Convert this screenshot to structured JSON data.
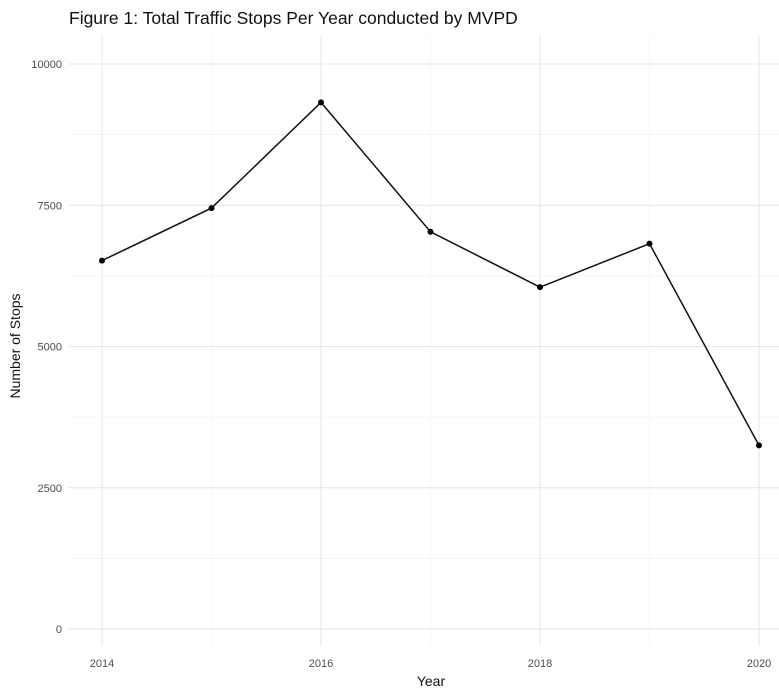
{
  "chart_data": {
    "type": "line",
    "title": "Figure 1: Total Traffic Stops Per Year conducted by MVPD",
    "xlabel": "Year",
    "ylabel": "Number of Stops",
    "x": [
      2014,
      2015,
      2016,
      2017,
      2018,
      2019,
      2020
    ],
    "values": [
      6520,
      7450,
      9320,
      7030,
      6050,
      6820,
      3250
    ],
    "xlim": [
      2014,
      2020
    ],
    "ylim": [
      0,
      10000
    ],
    "x_ticks": [
      "2014",
      "2016",
      "2018",
      "2020"
    ],
    "y_ticks": [
      "0",
      "2500",
      "5000",
      "7500",
      "10000"
    ],
    "grid": true,
    "line_color": "#111111",
    "point_color": "#000000"
  }
}
